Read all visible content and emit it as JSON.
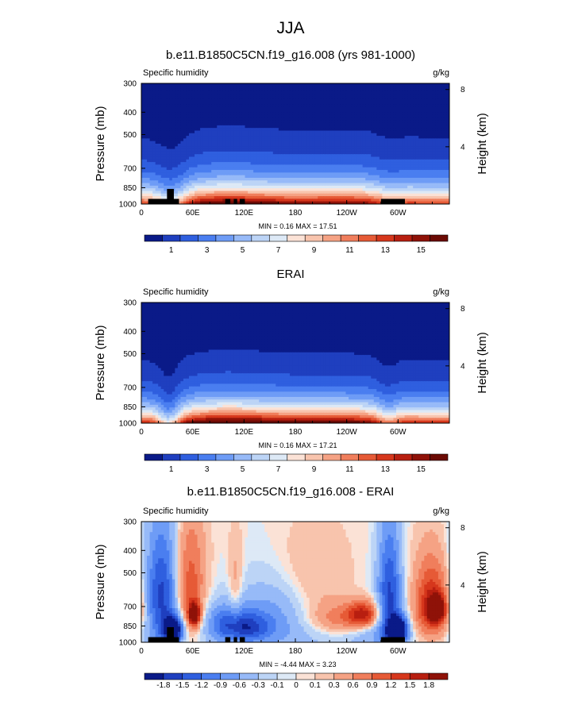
{
  "figure": {
    "title": "JJA"
  },
  "chart_data": [
    {
      "type": "heatmap",
      "title": "b.e11.B1850C5CN.f19_g16.008 (yrs 981-1000)",
      "variable": "Specific humidity",
      "units": "g/kg",
      "xlabel": "",
      "ylabel": "Pressure (mb)",
      "ylabel_right": "Height (km)",
      "xlim": [
        0,
        360
      ],
      "ylim": [
        1000,
        300
      ],
      "x_ticks": [
        "0",
        "60E",
        "120E",
        "180",
        "120W",
        "60W"
      ],
      "x_tick_values": [
        0,
        60,
        120,
        180,
        240,
        300
      ],
      "y_ticks": [
        "300",
        "400",
        "500",
        "700",
        "850",
        "1000"
      ],
      "y_tick_values": [
        300,
        400,
        500,
        700,
        850,
        1000
      ],
      "height_ticks": [
        "8",
        "4"
      ],
      "height_tick_values": [
        8,
        4
      ],
      "stats": {
        "min_label": "MIN = ",
        "min": "0.16",
        "max_label": "MAX = ",
        "max": "17.51"
      },
      "colorbar": {
        "levels": [
          0,
          1,
          2,
          3,
          4,
          5,
          6,
          7,
          8,
          9,
          10,
          11,
          12,
          13,
          14,
          15,
          16
        ],
        "labels": [
          "1",
          "3",
          "5",
          "7",
          "9",
          "11",
          "13",
          "15"
        ],
        "label_values": [
          1,
          3,
          5,
          7,
          9,
          11,
          13,
          15
        ],
        "colors": [
          "#0a1a88",
          "#1f3fbf",
          "#2f5fdf",
          "#4a7ef0",
          "#6e9cf6",
          "#97baf8",
          "#bcd4f6",
          "#dde9f6",
          "#fbe2d6",
          "#f8c4ad",
          "#f5a284",
          "#f07e5c",
          "#e65a36",
          "#d6371c",
          "#b81f10",
          "#8f1208",
          "#6b0a04"
        ]
      },
      "field": {
        "kind": "humidity",
        "surface_q": 15.5,
        "scale_height_mb": 185,
        "dry_regions": [
          {
            "center_lon": 35,
            "width_deg": 14,
            "strength": 0.35
          },
          {
            "center_lon": 290,
            "width_deg": 12,
            "strength": 0.12
          }
        ],
        "moist_regions": [
          {
            "center_lon": 90,
            "width_deg": 30,
            "strength": 0.15
          },
          {
            "center_lon": 140,
            "width_deg": 25,
            "strength": 0.1
          }
        ]
      },
      "topography": [
        {
          "lon_start": 8,
          "lon_end": 44,
          "p_top": 950
        },
        {
          "lon_start": 30,
          "lon_end": 38,
          "p_top": 860
        },
        {
          "lon_start": 98,
          "lon_end": 104,
          "p_top": 950
        },
        {
          "lon_start": 108,
          "lon_end": 112,
          "p_top": 950
        },
        {
          "lon_start": 115,
          "lon_end": 121,
          "p_top": 950
        },
        {
          "lon_start": 280,
          "lon_end": 308,
          "p_top": 950
        }
      ]
    },
    {
      "type": "heatmap",
      "title": "ERAI",
      "variable": "Specific humidity",
      "units": "g/kg",
      "xlabel": "",
      "ylabel": "Pressure (mb)",
      "ylabel_right": "Height (km)",
      "xlim": [
        0,
        360
      ],
      "ylim": [
        1000,
        300
      ],
      "x_ticks": [
        "0",
        "60E",
        "120E",
        "180",
        "120W",
        "60W"
      ],
      "x_tick_values": [
        0,
        60,
        120,
        180,
        240,
        300
      ],
      "y_ticks": [
        "300",
        "400",
        "500",
        "700",
        "850",
        "1000"
      ],
      "y_tick_values": [
        300,
        400,
        500,
        700,
        850,
        1000
      ],
      "height_ticks": [
        "8",
        "4"
      ],
      "height_tick_values": [
        8,
        4
      ],
      "stats": {
        "min_label": "MIN = ",
        "min": "0.16",
        "max_label": "MAX = ",
        "max": "17.21"
      },
      "colorbar": {
        "levels": [
          0,
          1,
          2,
          3,
          4,
          5,
          6,
          7,
          8,
          9,
          10,
          11,
          12,
          13,
          14,
          15,
          16
        ],
        "labels": [
          "1",
          "3",
          "5",
          "7",
          "9",
          "11",
          "13",
          "15"
        ],
        "label_values": [
          1,
          3,
          5,
          7,
          9,
          11,
          13,
          15
        ],
        "colors": [
          "#0a1a88",
          "#1f3fbf",
          "#2f5fdf",
          "#4a7ef0",
          "#6e9cf6",
          "#97baf8",
          "#bcd4f6",
          "#dde9f6",
          "#fbe2d6",
          "#f8c4ad",
          "#f5a284",
          "#f07e5c",
          "#e65a36",
          "#d6371c",
          "#b81f10",
          "#8f1208",
          "#6b0a04"
        ]
      },
      "field": {
        "kind": "humidity",
        "surface_q": 16.0,
        "scale_height_mb": 175,
        "dry_regions": [
          {
            "center_lon": 32,
            "width_deg": 10,
            "strength": 0.45
          },
          {
            "center_lon": 288,
            "width_deg": 10,
            "strength": 0.25
          }
        ],
        "moist_regions": [
          {
            "center_lon": 95,
            "width_deg": 30,
            "strength": 0.18
          },
          {
            "center_lon": 150,
            "width_deg": 30,
            "strength": 0.1
          }
        ]
      },
      "topography": []
    },
    {
      "type": "heatmap",
      "title": "b.e11.B1850C5CN.f19_g16.008 - ERAI",
      "variable": "Specific humidity",
      "units": "g/kg",
      "xlabel": "",
      "ylabel": "Pressure (mb)",
      "ylabel_right": "Height (km)",
      "xlim": [
        0,
        360
      ],
      "ylim": [
        1000,
        300
      ],
      "x_ticks": [
        "0",
        "60E",
        "120E",
        "180",
        "120W",
        "60W"
      ],
      "x_tick_values": [
        0,
        60,
        120,
        180,
        240,
        300
      ],
      "y_ticks": [
        "300",
        "400",
        "500",
        "700",
        "850",
        "1000"
      ],
      "y_tick_values": [
        300,
        400,
        500,
        700,
        850,
        1000
      ],
      "height_ticks": [
        "8",
        "4"
      ],
      "height_tick_values": [
        8,
        4
      ],
      "stats": {
        "min_label": "MIN = ",
        "min": "-4.44",
        "max_label": "MAX = ",
        "max": "3.23"
      },
      "colorbar": {
        "levels": [
          -2.1,
          -1.8,
          -1.5,
          -1.2,
          -0.9,
          -0.6,
          -0.3,
          -0.1,
          0,
          0.1,
          0.3,
          0.6,
          0.9,
          1.2,
          1.5,
          1.8,
          2.1
        ],
        "labels": [
          "-1.8",
          "-1.5",
          "-1.2",
          "-0.9",
          "-0.6",
          "-0.3",
          "-0.1",
          "0",
          "0.1",
          "0.3",
          "0.6",
          "0.9",
          "1.2",
          "1.5",
          "1.8"
        ],
        "label_values": [
          -1.8,
          -1.5,
          -1.2,
          -0.9,
          -0.6,
          -0.3,
          -0.1,
          0,
          0.1,
          0.3,
          0.6,
          0.9,
          1.2,
          1.5,
          1.8
        ],
        "colors": [
          "#0a1a88",
          "#1f3fbf",
          "#2f5fdf",
          "#4a7ef0",
          "#6e9cf6",
          "#97baf8",
          "#bcd4f6",
          "#dde9f6",
          "#fbe2d6",
          "#f8c4ad",
          "#f5a284",
          "#f07e5c",
          "#e65a36",
          "#d6371c",
          "#b81f10",
          "#8f1208"
        ]
      },
      "field": {
        "kind": "difference",
        "blobs": [
          {
            "lon": 25,
            "p": 600,
            "amp": -1.6,
            "w": 16,
            "h": 260
          },
          {
            "lon": 38,
            "p": 880,
            "amp": -2.4,
            "w": 8,
            "h": 80
          },
          {
            "lon": 55,
            "p": 620,
            "amp": 1.4,
            "w": 14,
            "h": 260
          },
          {
            "lon": 62,
            "p": 760,
            "amp": 2.2,
            "w": 5,
            "h": 60
          },
          {
            "lon": 105,
            "p": 820,
            "amp": -1.0,
            "w": 24,
            "h": 110
          },
          {
            "lon": 110,
            "p": 600,
            "amp": 0.5,
            "w": 6,
            "h": 200
          },
          {
            "lon": 125,
            "p": 880,
            "amp": -0.7,
            "w": 20,
            "h": 80
          },
          {
            "lon": 160,
            "p": 720,
            "amp": -0.6,
            "w": 30,
            "h": 200
          },
          {
            "lon": 195,
            "p": 560,
            "amp": 0.5,
            "w": 35,
            "h": 180
          },
          {
            "lon": 240,
            "p": 790,
            "amp": 1.0,
            "w": 30,
            "h": 90
          },
          {
            "lon": 260,
            "p": 760,
            "amp": 1.3,
            "w": 12,
            "h": 70
          },
          {
            "lon": 270,
            "p": 880,
            "amp": -0.5,
            "w": 20,
            "h": 80
          },
          {
            "lon": 290,
            "p": 620,
            "amp": -1.5,
            "w": 10,
            "h": 280
          },
          {
            "lon": 300,
            "p": 880,
            "amp": -2.4,
            "w": 8,
            "h": 80
          },
          {
            "lon": 340,
            "p": 700,
            "amp": 1.8,
            "w": 16,
            "h": 200
          },
          {
            "lon": 345,
            "p": 720,
            "amp": 2.0,
            "w": 7,
            "h": 60
          }
        ]
      },
      "topography": [
        {
          "lon_start": 8,
          "lon_end": 44,
          "p_top": 950
        },
        {
          "lon_start": 30,
          "lon_end": 38,
          "p_top": 860
        },
        {
          "lon_start": 98,
          "lon_end": 104,
          "p_top": 950
        },
        {
          "lon_start": 108,
          "lon_end": 112,
          "p_top": 950
        },
        {
          "lon_start": 115,
          "lon_end": 121,
          "p_top": 950
        },
        {
          "lon_start": 280,
          "lon_end": 308,
          "p_top": 950
        }
      ]
    }
  ]
}
